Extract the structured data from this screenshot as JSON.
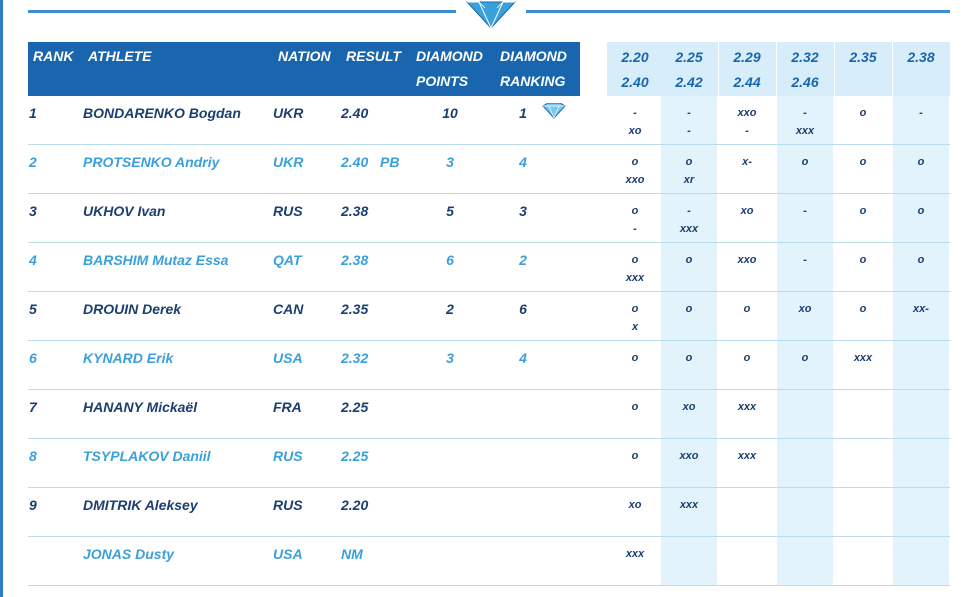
{
  "header": {
    "rank": "RANK",
    "athlete": "ATHLETE",
    "nation": "NATION",
    "result": "RESULT",
    "dp_line1": "DIAMOND",
    "dp_line2": "POINTS",
    "dr_line1": "DIAMOND",
    "dr_line2": "RANKING"
  },
  "heights": {
    "row1": [
      "2.20",
      "2.25",
      "2.29",
      "2.32",
      "2.35",
      "2.38"
    ],
    "row2": [
      "2.40",
      "2.42",
      "2.44",
      "2.46"
    ]
  },
  "athletes": [
    {
      "rank": "1",
      "name": "BONDARENKO Bogdan",
      "nation": "UKR",
      "result": "2.40",
      "pb": "",
      "points": "10",
      "ranking": "1",
      "diamond": true,
      "attempts": [
        [
          "-",
          "xo"
        ],
        [
          "-",
          "-"
        ],
        [
          "xxo",
          "-"
        ],
        [
          "-",
          "xxx"
        ],
        [
          "o",
          ""
        ],
        [
          "-",
          ""
        ]
      ]
    },
    {
      "rank": "2",
      "name": "PROTSENKO Andriy",
      "nation": "UKR",
      "result": "2.40",
      "pb": "PB",
      "points": "3",
      "ranking": "4",
      "diamond": false,
      "attempts": [
        [
          "o",
          "xxo"
        ],
        [
          "o",
          "xr"
        ],
        [
          "x-",
          ""
        ],
        [
          "o",
          ""
        ],
        [
          "o",
          ""
        ],
        [
          "o",
          ""
        ]
      ]
    },
    {
      "rank": "3",
      "name": "UKHOV Ivan",
      "nation": "RUS",
      "result": "2.38",
      "pb": "",
      "points": "5",
      "ranking": "3",
      "diamond": false,
      "attempts": [
        [
          "o",
          "-"
        ],
        [
          "-",
          "xxx"
        ],
        [
          "xo",
          ""
        ],
        [
          "-",
          ""
        ],
        [
          "o",
          ""
        ],
        [
          "o",
          ""
        ]
      ]
    },
    {
      "rank": "4",
      "name": "BARSHIM Mutaz Essa",
      "nation": "QAT",
      "result": "2.38",
      "pb": "",
      "points": "6",
      "ranking": "2",
      "diamond": false,
      "attempts": [
        [
          "o",
          "xxx"
        ],
        [
          "o",
          ""
        ],
        [
          "xxo",
          ""
        ],
        [
          "-",
          ""
        ],
        [
          "o",
          ""
        ],
        [
          "o",
          ""
        ]
      ]
    },
    {
      "rank": "5",
      "name": "DROUIN Derek",
      "nation": "CAN",
      "result": "2.35",
      "pb": "",
      "points": "2",
      "ranking": "6",
      "diamond": false,
      "attempts": [
        [
          "o",
          "x"
        ],
        [
          "o",
          ""
        ],
        [
          "o",
          ""
        ],
        [
          "xo",
          ""
        ],
        [
          "o",
          ""
        ],
        [
          "xx-",
          ""
        ]
      ]
    },
    {
      "rank": "6",
      "name": "KYNARD Erik",
      "nation": "USA",
      "result": "2.32",
      "pb": "",
      "points": "3",
      "ranking": "4",
      "diamond": false,
      "attempts": [
        [
          "o",
          ""
        ],
        [
          "o",
          ""
        ],
        [
          "o",
          ""
        ],
        [
          "o",
          ""
        ],
        [
          "xxx",
          ""
        ],
        [
          "",
          ""
        ]
      ]
    },
    {
      "rank": "7",
      "name": "HANANY Mickaël",
      "nation": "FRA",
      "result": "2.25",
      "pb": "",
      "points": "",
      "ranking": "",
      "diamond": false,
      "attempts": [
        [
          "o",
          ""
        ],
        [
          "xo",
          ""
        ],
        [
          "xxx",
          ""
        ],
        [
          "",
          ""
        ],
        [
          "",
          ""
        ],
        [
          "",
          ""
        ]
      ]
    },
    {
      "rank": "8",
      "name": "TSYPLAKOV Daniil",
      "nation": "RUS",
      "result": "2.25",
      "pb": "",
      "points": "",
      "ranking": "",
      "diamond": false,
      "attempts": [
        [
          "o",
          ""
        ],
        [
          "xxo",
          ""
        ],
        [
          "xxx",
          ""
        ],
        [
          "",
          ""
        ],
        [
          "",
          ""
        ],
        [
          "",
          ""
        ]
      ]
    },
    {
      "rank": "9",
      "name": "DMITRIK Aleksey",
      "nation": "RUS",
      "result": "2.20",
      "pb": "",
      "points": "",
      "ranking": "",
      "diamond": false,
      "attempts": [
        [
          "xo",
          ""
        ],
        [
          "xxx",
          ""
        ],
        [
          "",
          ""
        ],
        [
          "",
          ""
        ],
        [
          "",
          ""
        ],
        [
          "",
          ""
        ]
      ]
    },
    {
      "rank": "",
      "name": "JONAS Dusty",
      "nation": "USA",
      "result": "NM",
      "pb": "",
      "points": "",
      "ranking": "",
      "diamond": false,
      "attempts": [
        [
          "xxx",
          ""
        ],
        [
          "",
          ""
        ],
        [
          "",
          ""
        ],
        [
          "",
          ""
        ],
        [
          "",
          ""
        ],
        [
          "",
          ""
        ]
      ]
    }
  ],
  "colors": {
    "header_bg": "#1a66ae",
    "stripe_bg": "#e2f3fc",
    "odd_text": "#1c3f70",
    "even_text": "#3aa0dc"
  },
  "icons": {
    "top": "diamond-icon",
    "winner": "diamond-icon"
  }
}
